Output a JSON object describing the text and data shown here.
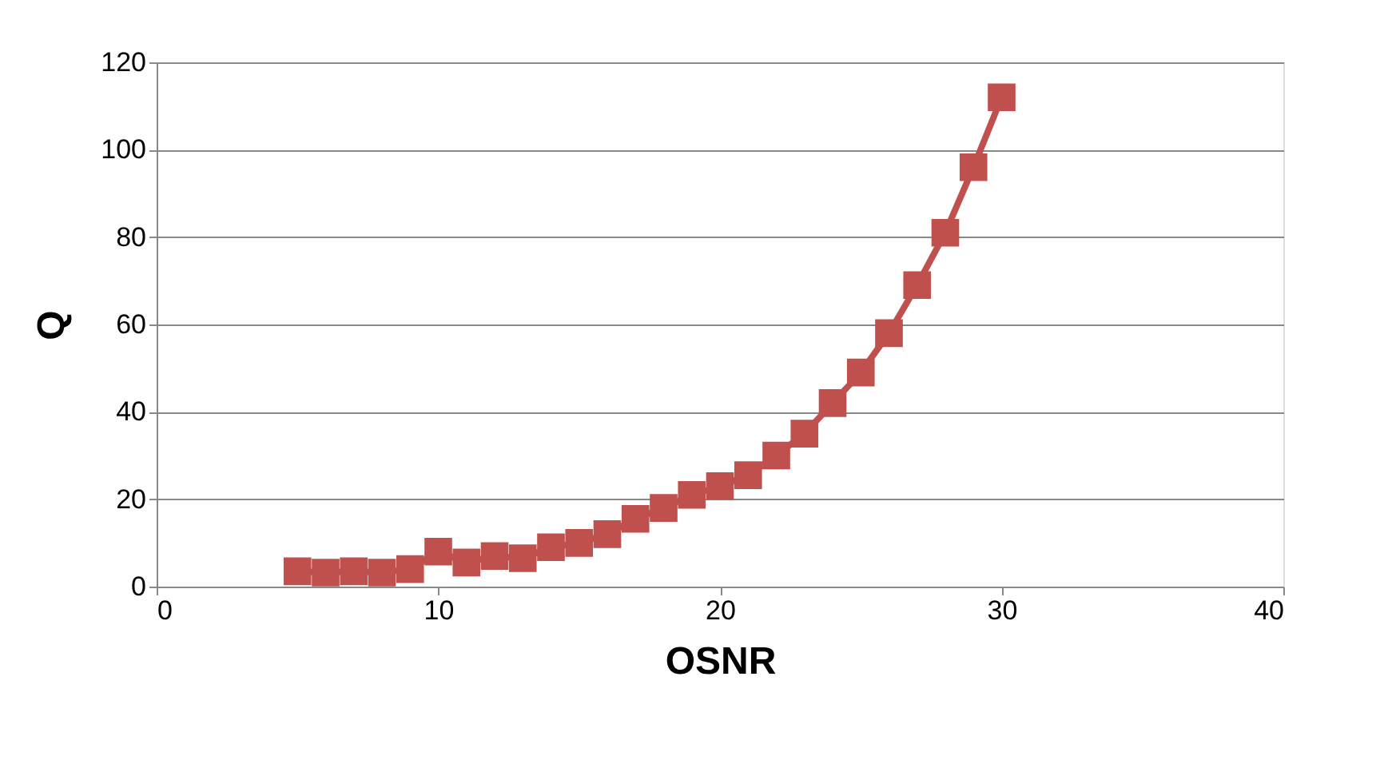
{
  "chart_data": {
    "type": "line",
    "xlabel": "OSNR",
    "ylabel": "Q",
    "marker": "square",
    "grid": "y",
    "xlim": [
      0,
      40
    ],
    "xticks": [
      0,
      10,
      20,
      30,
      40
    ],
    "ylim": [
      0,
      120
    ],
    "yticks": [
      0,
      20,
      40,
      60,
      80,
      100,
      120
    ],
    "x": [
      5,
      6,
      7,
      8,
      9,
      10,
      11,
      12,
      13,
      14,
      15,
      16,
      17,
      18,
      19,
      20,
      21,
      22,
      23,
      24,
      25,
      26,
      27,
      28,
      29,
      30
    ],
    "series": [
      {
        "color": "#c0504d",
        "values": [
          3.5,
          3.2,
          3.5,
          3.2,
          4,
          8,
          5.5,
          7,
          6.5,
          9,
          10,
          12,
          15.5,
          18,
          21,
          23,
          25.5,
          30,
          35,
          42,
          49,
          58,
          69,
          81,
          96,
          112
        ]
      }
    ]
  }
}
